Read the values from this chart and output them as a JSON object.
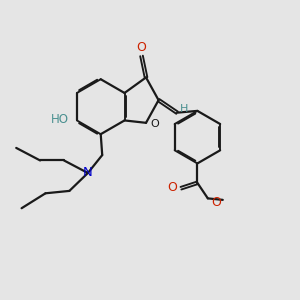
{
  "bg_color": "#e5e5e5",
  "bond_color": "#1a1a1a",
  "o_color": "#cc2200",
  "n_color": "#0000cc",
  "ho_color": "#4a9090",
  "h_color": "#4a9090",
  "line_width": 1.6,
  "figsize": [
    3.0,
    3.0
  ],
  "dpi": 100,
  "xlim": [
    0,
    10
  ],
  "ylim": [
    0,
    10
  ]
}
